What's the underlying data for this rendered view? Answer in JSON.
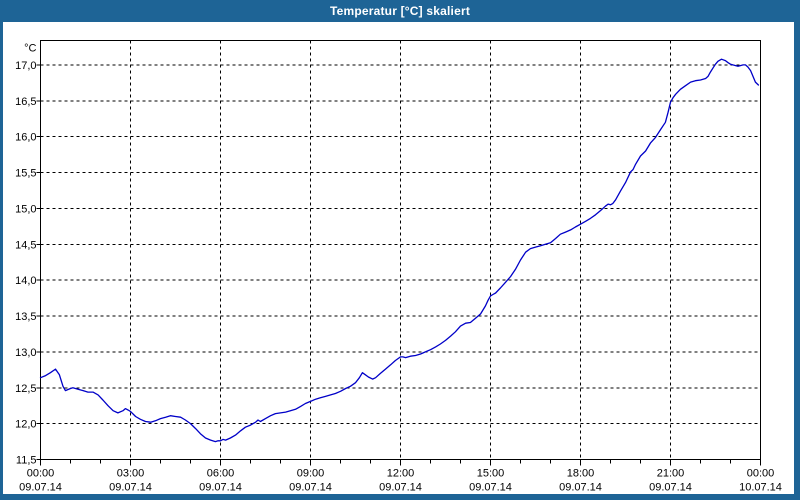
{
  "window": {
    "title": "Temperatur [°C] skaliert"
  },
  "colors": {
    "titlebar_bg": "#1E6496",
    "titlebar_text": "#FFFFFF",
    "window_border": "#1E6496",
    "content_bg": "#FFFFFF",
    "plot_border": "#000000",
    "grid": "#000000",
    "tick_text": "#000000",
    "series_line": "#0000C8"
  },
  "chart_data": {
    "type": "line",
    "title": "Temperatur [°C] skaliert",
    "y_unit_label": "°C",
    "grid": "dashed",
    "legend": "none",
    "x_axis": {
      "range_hours": [
        0,
        24
      ],
      "minor_tick_every_hours": 1,
      "ticks": [
        {
          "hour": 0,
          "time": "00:00",
          "date": "09.07.14"
        },
        {
          "hour": 3,
          "time": "03:00",
          "date": "09.07.14"
        },
        {
          "hour": 6,
          "time": "06:00",
          "date": "09.07.14"
        },
        {
          "hour": 9,
          "time": "09:00",
          "date": "09.07.14"
        },
        {
          "hour": 12,
          "time": "12:00",
          "date": "09.07.14"
        },
        {
          "hour": 15,
          "time": "15:00",
          "date": "09.07.14"
        },
        {
          "hour": 18,
          "time": "18:00",
          "date": "09.07.14"
        },
        {
          "hour": 21,
          "time": "21:00",
          "date": "09.07.14"
        },
        {
          "hour": 24,
          "time": "00:00",
          "date": "10.07.14"
        }
      ]
    },
    "y_axis": {
      "range": [
        11.5,
        17.34
      ],
      "ticks": [
        {
          "value": 11.5,
          "label": "11,5"
        },
        {
          "value": 12.0,
          "label": "12,0"
        },
        {
          "value": 12.5,
          "label": "12,5"
        },
        {
          "value": 13.0,
          "label": "13,0"
        },
        {
          "value": 13.5,
          "label": "13,5"
        },
        {
          "value": 14.0,
          "label": "14,0"
        },
        {
          "value": 14.5,
          "label": "14,5"
        },
        {
          "value": 15.0,
          "label": "15,0"
        },
        {
          "value": 15.5,
          "label": "15,5"
        },
        {
          "value": 16.0,
          "label": "16,0"
        },
        {
          "value": 16.5,
          "label": "16,5"
        },
        {
          "value": 17.0,
          "label": "17,0"
        }
      ]
    },
    "series": [
      {
        "name": "Temperatur",
        "color": "#0000C8",
        "points": [
          [
            0,
            12.64
          ],
          [
            0.17,
            12.67
          ],
          [
            0.33,
            12.71
          ],
          [
            0.5,
            12.76
          ],
          [
            0.63,
            12.68
          ],
          [
            0.75,
            12.52
          ],
          [
            0.83,
            12.46
          ],
          [
            1,
            12.49
          ],
          [
            1.08,
            12.5
          ],
          [
            1.25,
            12.48
          ],
          [
            1.42,
            12.46
          ],
          [
            1.58,
            12.44
          ],
          [
            1.75,
            12.44
          ],
          [
            1.92,
            12.4
          ],
          [
            2.08,
            12.33
          ],
          [
            2.25,
            12.25
          ],
          [
            2.42,
            12.18
          ],
          [
            2.58,
            12.15
          ],
          [
            2.75,
            12.18
          ],
          [
            2.83,
            12.21
          ],
          [
            2.92,
            12.19
          ],
          [
            3,
            12.17
          ],
          [
            3.17,
            12.1
          ],
          [
            3.33,
            12.06
          ],
          [
            3.5,
            12.03
          ],
          [
            3.67,
            12.02
          ],
          [
            3.83,
            12.04
          ],
          [
            4,
            12.07
          ],
          [
            4.17,
            12.09
          ],
          [
            4.33,
            12.11
          ],
          [
            4.5,
            12.1
          ],
          [
            4.67,
            12.09
          ],
          [
            4.83,
            12.05
          ],
          [
            5,
            12
          ],
          [
            5.17,
            11.93
          ],
          [
            5.33,
            11.86
          ],
          [
            5.5,
            11.8
          ],
          [
            5.67,
            11.77
          ],
          [
            5.83,
            11.75
          ],
          [
            5.92,
            11.76
          ],
          [
            6,
            11.76
          ],
          [
            6.08,
            11.78
          ],
          [
            6.17,
            11.77
          ],
          [
            6.33,
            11.8
          ],
          [
            6.5,
            11.84
          ],
          [
            6.67,
            11.9
          ],
          [
            6.83,
            11.95
          ],
          [
            7,
            11.98
          ],
          [
            7.17,
            12.02
          ],
          [
            7.25,
            12.05
          ],
          [
            7.33,
            12.03
          ],
          [
            7.5,
            12.07
          ],
          [
            7.67,
            12.11
          ],
          [
            7.83,
            12.14
          ],
          [
            8,
            12.15
          ],
          [
            8.17,
            12.16
          ],
          [
            8.33,
            12.18
          ],
          [
            8.5,
            12.2
          ],
          [
            8.67,
            12.24
          ],
          [
            8.83,
            12.28
          ],
          [
            9,
            12.31
          ],
          [
            9.17,
            12.34
          ],
          [
            9.33,
            12.36
          ],
          [
            9.5,
            12.38
          ],
          [
            9.67,
            12.4
          ],
          [
            9.83,
            12.42
          ],
          [
            10,
            12.45
          ],
          [
            10.17,
            12.49
          ],
          [
            10.33,
            12.52
          ],
          [
            10.5,
            12.57
          ],
          [
            10.63,
            12.64
          ],
          [
            10.73,
            12.71
          ],
          [
            10.83,
            12.68
          ],
          [
            10.93,
            12.65
          ],
          [
            11.07,
            12.62
          ],
          [
            11.17,
            12.64
          ],
          [
            11.33,
            12.7
          ],
          [
            11.5,
            12.76
          ],
          [
            11.67,
            12.82
          ],
          [
            11.83,
            12.88
          ],
          [
            12,
            12.93
          ],
          [
            12.08,
            12.93
          ],
          [
            12.17,
            12.92
          ],
          [
            12.33,
            12.94
          ],
          [
            12.5,
            12.95
          ],
          [
            12.67,
            12.97
          ],
          [
            12.83,
            13
          ],
          [
            13,
            13.03
          ],
          [
            13.17,
            13.07
          ],
          [
            13.33,
            13.11
          ],
          [
            13.5,
            13.16
          ],
          [
            13.67,
            13.22
          ],
          [
            13.83,
            13.28
          ],
          [
            14,
            13.36
          ],
          [
            14.17,
            13.4
          ],
          [
            14.33,
            13.41
          ],
          [
            14.5,
            13.47
          ],
          [
            14.67,
            13.53
          ],
          [
            14.83,
            13.64
          ],
          [
            14.92,
            13.72
          ],
          [
            15,
            13.78
          ],
          [
            15.08,
            13.8
          ],
          [
            15.17,
            13.82
          ],
          [
            15.33,
            13.89
          ],
          [
            15.5,
            13.97
          ],
          [
            15.67,
            14.05
          ],
          [
            15.83,
            14.15
          ],
          [
            16,
            14.28
          ],
          [
            16.17,
            14.39
          ],
          [
            16.33,
            14.44
          ],
          [
            16.5,
            14.46
          ],
          [
            16.67,
            14.48
          ],
          [
            16.83,
            14.5
          ],
          [
            17,
            14.52
          ],
          [
            17.17,
            14.58
          ],
          [
            17.33,
            14.64
          ],
          [
            17.5,
            14.67
          ],
          [
            17.67,
            14.7
          ],
          [
            17.83,
            14.74
          ],
          [
            18,
            14.78
          ],
          [
            18.17,
            14.82
          ],
          [
            18.33,
            14.86
          ],
          [
            18.5,
            14.91
          ],
          [
            18.67,
            14.97
          ],
          [
            18.83,
            15.03
          ],
          [
            18.92,
            15.06
          ],
          [
            19,
            15.05
          ],
          [
            19.08,
            15.07
          ],
          [
            19.17,
            15.12
          ],
          [
            19.33,
            15.24
          ],
          [
            19.5,
            15.36
          ],
          [
            19.67,
            15.51
          ],
          [
            19.75,
            15.54
          ],
          [
            19.83,
            15.61
          ],
          [
            20,
            15.73
          ],
          [
            20.17,
            15.8
          ],
          [
            20.33,
            15.91
          ],
          [
            20.5,
            15.99
          ],
          [
            20.67,
            16.1
          ],
          [
            20.83,
            16.2
          ],
          [
            20.92,
            16.34
          ],
          [
            21,
            16.48
          ],
          [
            21.08,
            16.54
          ],
          [
            21.17,
            16.59
          ],
          [
            21.33,
            16.66
          ],
          [
            21.5,
            16.71
          ],
          [
            21.67,
            16.76
          ],
          [
            21.83,
            16.78
          ],
          [
            22,
            16.79
          ],
          [
            22.17,
            16.81
          ],
          [
            22.25,
            16.84
          ],
          [
            22.33,
            16.9
          ],
          [
            22.42,
            16.96
          ],
          [
            22.5,
            17.01
          ],
          [
            22.58,
            17.05
          ],
          [
            22.7,
            17.08
          ],
          [
            22.83,
            17.06
          ],
          [
            22.92,
            17.03
          ],
          [
            23,
            17.01
          ],
          [
            23.08,
            17
          ],
          [
            23.17,
            16.99
          ],
          [
            23.25,
            16.98
          ],
          [
            23.33,
            16.99
          ],
          [
            23.42,
            17
          ],
          [
            23.5,
            17
          ],
          [
            23.58,
            16.97
          ],
          [
            23.67,
            16.92
          ],
          [
            23.75,
            16.84
          ],
          [
            23.83,
            16.76
          ],
          [
            23.93,
            16.72
          ]
        ]
      }
    ]
  }
}
